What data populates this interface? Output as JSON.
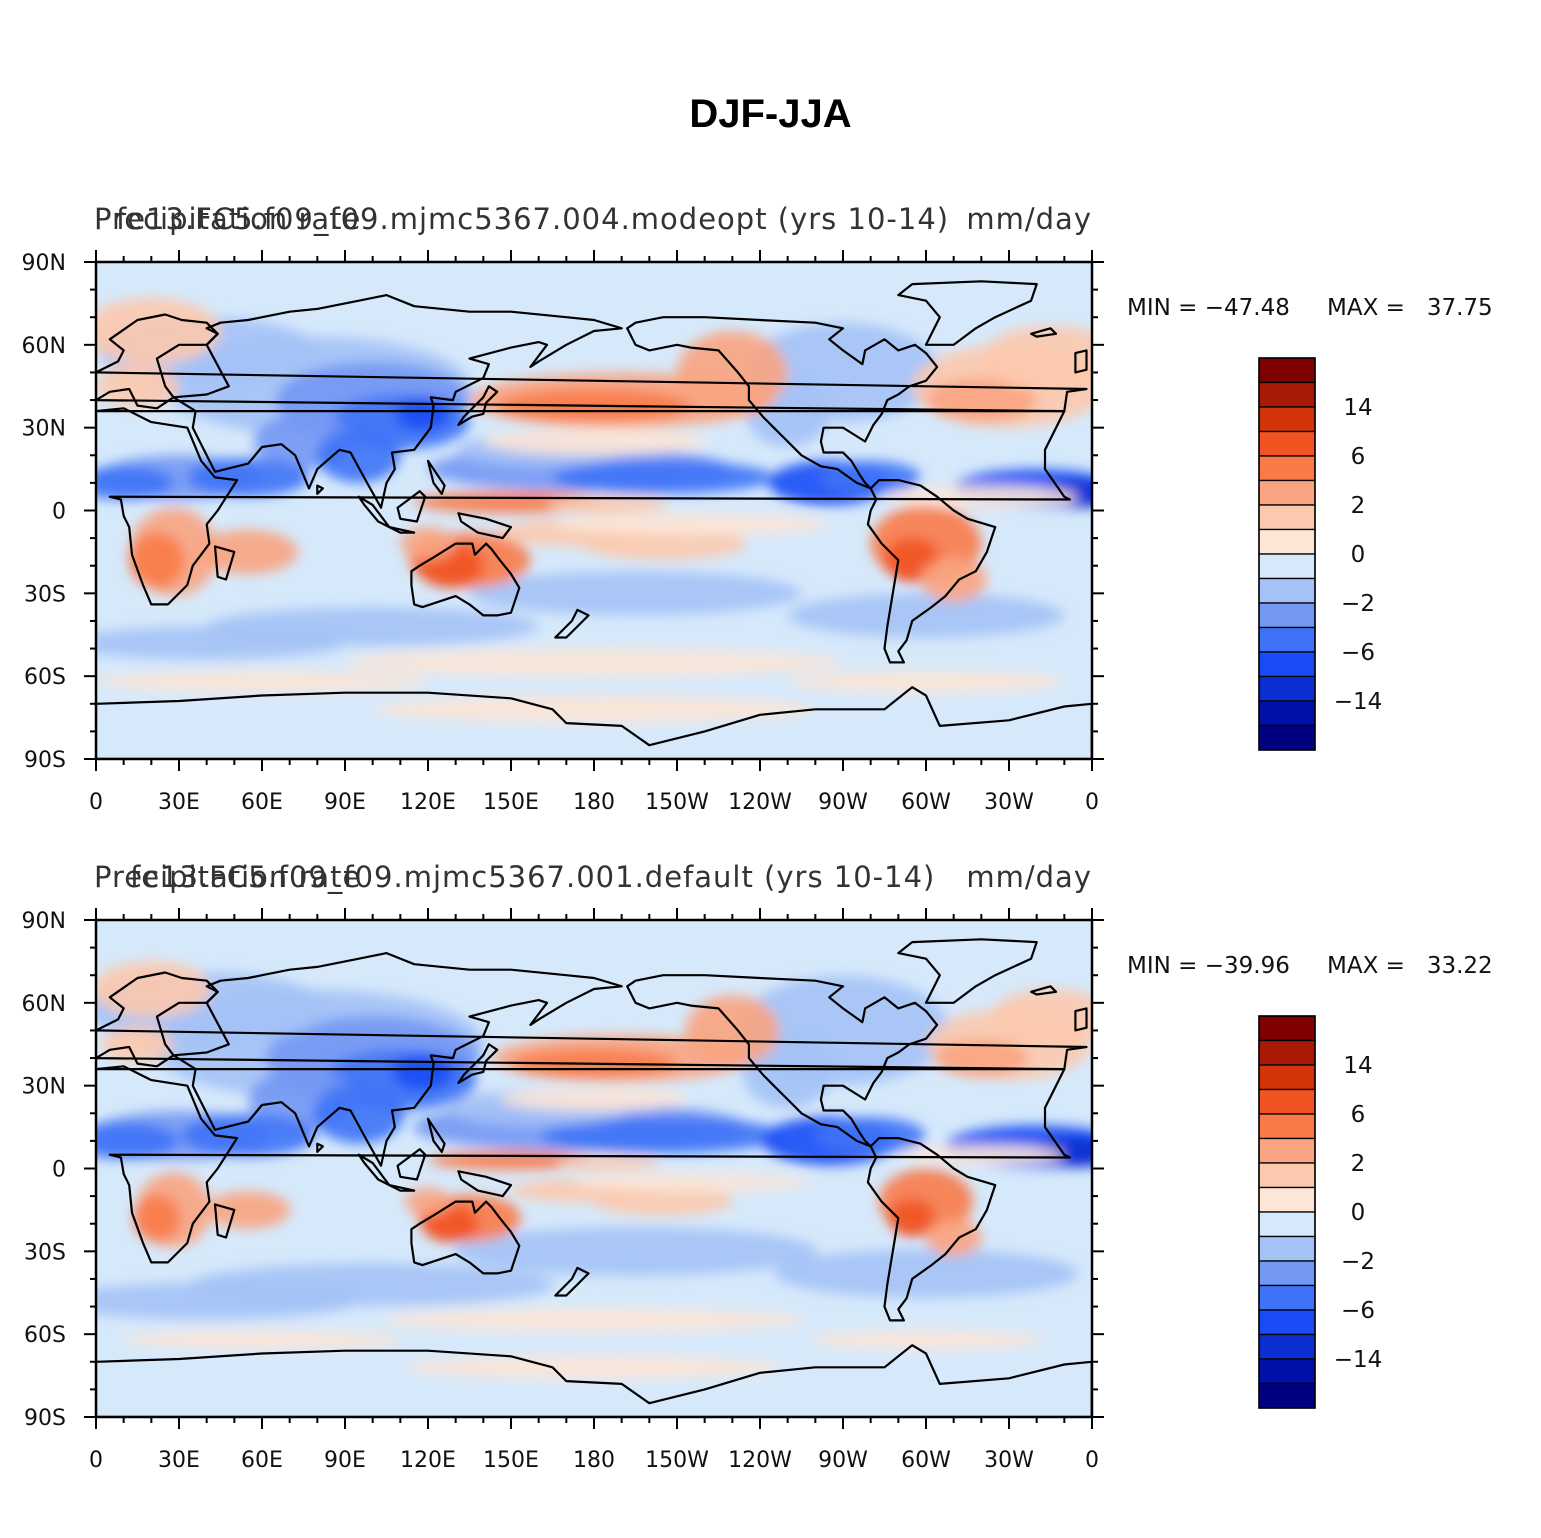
{
  "title": "DJF-JJA",
  "colors": {
    "ocean_base": "#d6e9fb",
    "coast": "#000000",
    "levels": [
      "#000080",
      "#0011a8",
      "#0b2fd1",
      "#1a4cf5",
      "#3f73f7",
      "#7398f4",
      "#a4c2f6",
      "#d6e9fb",
      "#fde6d6",
      "#fcc9ae",
      "#f9a481",
      "#f97a48",
      "#f25322",
      "#d33409",
      "#a81a04",
      "#7f0000"
    ]
  },
  "colorbar": {
    "labels": [
      "14",
      "6",
      "2",
      "0",
      "−2",
      "−6",
      "−14"
    ]
  },
  "axes": {
    "x_ticks": [
      "0",
      "30E",
      "60E",
      "90E",
      "120E",
      "150E",
      "180",
      "150W",
      "120W",
      "90W",
      "60W",
      "30W",
      "0"
    ],
    "y_ticks": [
      "90N",
      "60N",
      "30N",
      "0",
      "30S",
      "60S",
      "90S"
    ]
  },
  "panels": [
    {
      "left_text": "Precipitation rate",
      "center_text": "fe13.FC5.f09_f09.mjmc5367.004.modeopt (yrs 10-14)",
      "right_text": "mm/day",
      "min_label": "MIN = −47.48",
      "max_label": "MAX =   37.75"
    },
    {
      "left_text": "Precipitation rate",
      "center_text": "fe13.FC5.f09_f09.mjmc5367.001.default (yrs 10-14)",
      "right_text": "mm/day",
      "min_label": "MIN = −39.96",
      "max_label": "MAX =   33.22"
    }
  ]
}
